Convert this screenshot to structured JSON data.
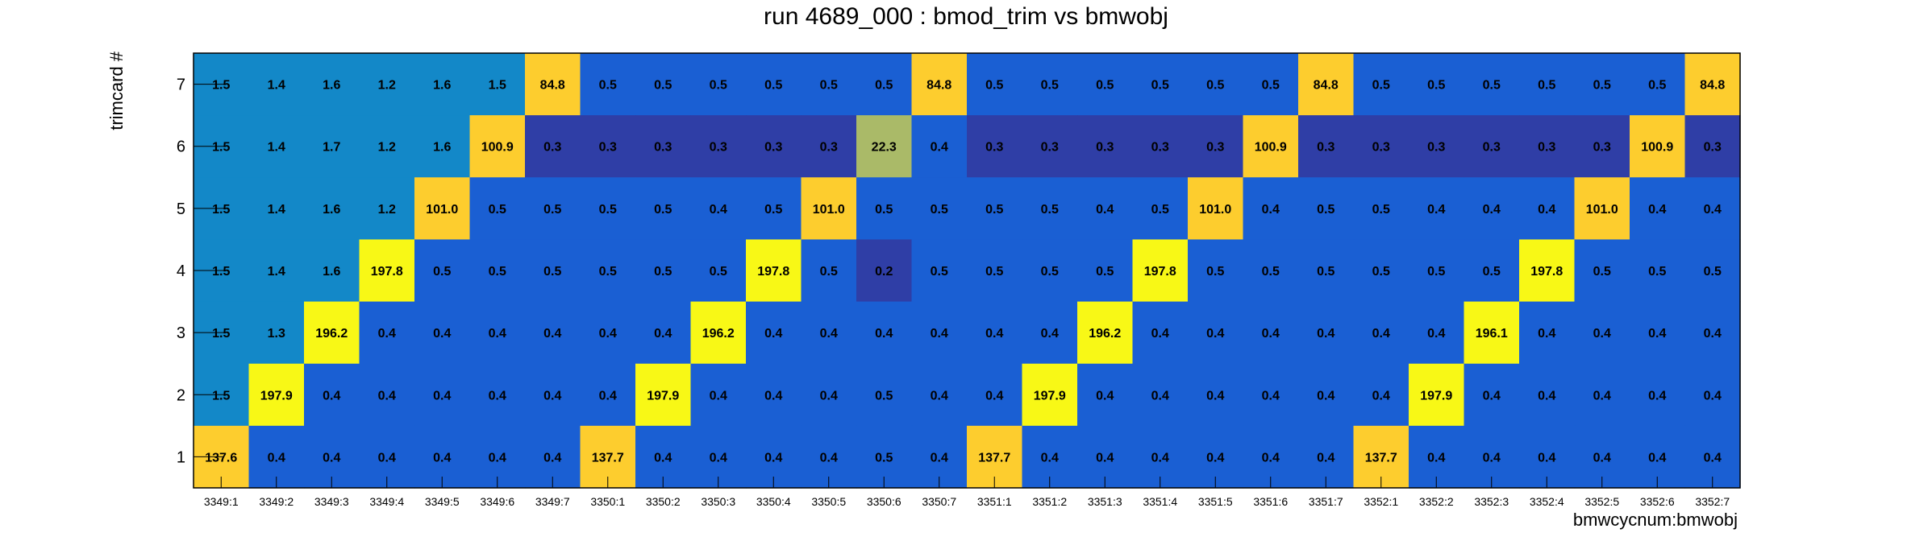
{
  "chart_data": {
    "type": "heatmap",
    "title": "run 4689_000 : bmod_trim vs bmwobj",
    "xlabel": "bmwcycnum:bmwobj",
    "ylabel": "trimcard #",
    "x": [
      "3349:1",
      "3349:2",
      "3349:3",
      "3349:4",
      "3349:5",
      "3349:6",
      "3349:7",
      "3350:1",
      "3350:2",
      "3350:3",
      "3350:4",
      "3350:5",
      "3350:6",
      "3350:7",
      "3351:1",
      "3351:2",
      "3351:3",
      "3351:4",
      "3351:5",
      "3351:6",
      "3351:7",
      "3352:1",
      "3352:2",
      "3352:3",
      "3352:4",
      "3352:5",
      "3352:6",
      "3352:7"
    ],
    "y": [
      "1",
      "2",
      "3",
      "4",
      "5",
      "6",
      "7"
    ],
    "rows": [
      {
        "trimcard": "7",
        "values": [
          "1.5",
          "1.4",
          "1.6",
          "1.2",
          "1.6",
          "1.5",
          "84.8",
          "0.5",
          "0.5",
          "0.5",
          "0.5",
          "0.5",
          "0.5",
          "84.8",
          "0.5",
          "0.5",
          "0.5",
          "0.5",
          "0.5",
          "0.5",
          "84.8",
          "0.5",
          "0.5",
          "0.5",
          "0.5",
          "0.5",
          "0.5",
          "84.8"
        ]
      },
      {
        "trimcard": "6",
        "values": [
          "1.5",
          "1.4",
          "1.7",
          "1.2",
          "1.6",
          "100.9",
          "0.3",
          "0.3",
          "0.3",
          "0.3",
          "0.3",
          "0.3",
          "22.3",
          "0.4",
          "0.3",
          "0.3",
          "0.3",
          "0.3",
          "0.3",
          "100.9",
          "0.3",
          "0.3",
          "0.3",
          "0.3",
          "0.3",
          "0.3",
          "100.9",
          "0.3"
        ]
      },
      {
        "trimcard": "5",
        "values": [
          "1.5",
          "1.4",
          "1.6",
          "1.2",
          "101.0",
          "0.5",
          "0.5",
          "0.5",
          "0.5",
          "0.4",
          "0.5",
          "101.0",
          "0.5",
          "0.5",
          "0.5",
          "0.5",
          "0.4",
          "0.5",
          "101.0",
          "0.4",
          "0.5",
          "0.5",
          "0.4",
          "0.4",
          "0.4",
          "101.0",
          "0.4",
          "0.4"
        ]
      },
      {
        "trimcard": "4",
        "values": [
          "1.5",
          "1.4",
          "1.6",
          "197.8",
          "0.5",
          "0.5",
          "0.5",
          "0.5",
          "0.5",
          "0.5",
          "197.8",
          "0.5",
          "0.2",
          "0.5",
          "0.5",
          "0.5",
          "0.5",
          "197.8",
          "0.5",
          "0.5",
          "0.5",
          "0.5",
          "0.5",
          "0.5",
          "197.8",
          "0.5",
          "0.5",
          "0.5"
        ]
      },
      {
        "trimcard": "3",
        "values": [
          "1.5",
          "1.3",
          "196.2",
          "0.4",
          "0.4",
          "0.4",
          "0.4",
          "0.4",
          "0.4",
          "196.2",
          "0.4",
          "0.4",
          "0.4",
          "0.4",
          "0.4",
          "0.4",
          "196.2",
          "0.4",
          "0.4",
          "0.4",
          "0.4",
          "0.4",
          "0.4",
          "196.1",
          "0.4",
          "0.4",
          "0.4",
          "0.4"
        ]
      },
      {
        "trimcard": "2",
        "values": [
          "1.5",
          "197.9",
          "0.4",
          "0.4",
          "0.4",
          "0.4",
          "0.4",
          "0.4",
          "197.9",
          "0.4",
          "0.4",
          "0.4",
          "0.5",
          "0.4",
          "0.4",
          "197.9",
          "0.4",
          "0.4",
          "0.4",
          "0.4",
          "0.4",
          "0.4",
          "197.9",
          "0.4",
          "0.4",
          "0.4",
          "0.4",
          "0.4"
        ]
      },
      {
        "trimcard": "1",
        "values": [
          "137.6",
          "0.4",
          "0.4",
          "0.4",
          "0.4",
          "0.4",
          "0.4",
          "137.7",
          "0.4",
          "0.4",
          "0.4",
          "0.4",
          "0.5",
          "0.4",
          "137.7",
          "0.4",
          "0.4",
          "0.4",
          "0.4",
          "0.4",
          "0.4",
          "137.7",
          "0.4",
          "0.4",
          "0.4",
          "0.4",
          "0.4",
          "0.4"
        ]
      }
    ],
    "colors": {
      "low": "#2f3ea6",
      "low_mid": "#1a5fd3",
      "mid": "#1388c8",
      "high_mid": "#aaba68",
      "high": "#fdcd2e",
      "max": "#f8f816",
      "frame": "#000000"
    },
    "grid": false,
    "legend": "none"
  }
}
